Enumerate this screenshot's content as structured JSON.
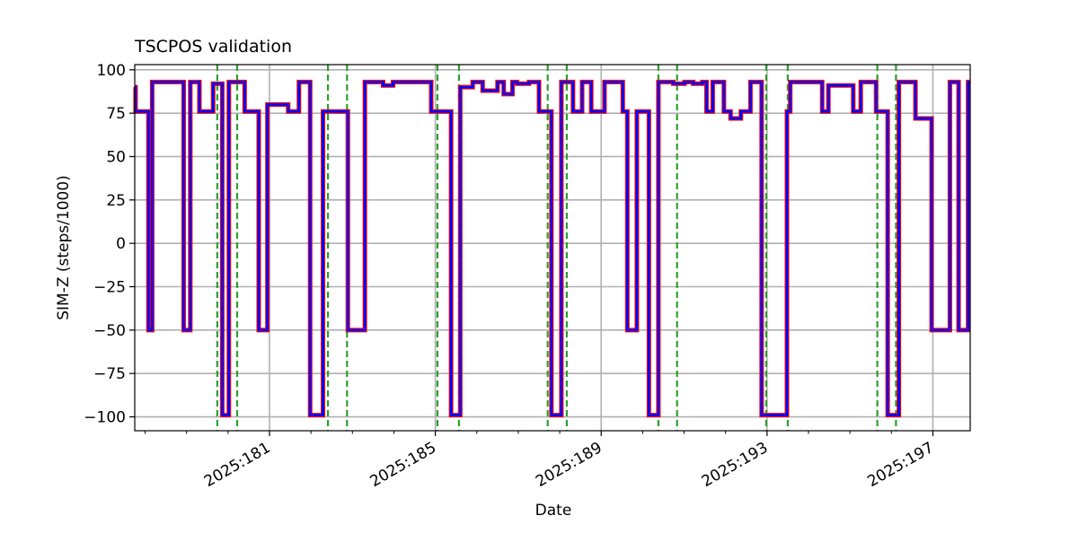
{
  "chart_data": {
    "type": "line",
    "title": "TSCPOS validation",
    "xlabel": "Date",
    "ylabel": "SIM-Z (steps/1000)",
    "xlim": [
      177.75,
      197.9
    ],
    "ylim": [
      -108,
      103
    ],
    "xticks": [
      {
        "value": 181,
        "label": "2025:181"
      },
      {
        "value": 185,
        "label": "2025:185"
      },
      {
        "value": 189,
        "label": "2025:189"
      },
      {
        "value": 193,
        "label": "2025:193"
      },
      {
        "value": 197,
        "label": "2025:197"
      }
    ],
    "xminor_ticks": [
      178,
      179,
      180,
      182,
      183,
      184,
      186,
      187,
      188,
      190,
      191,
      192,
      194,
      195,
      196
    ],
    "yticks": [
      -100,
      -75,
      -50,
      -25,
      0,
      25,
      50,
      75,
      100
    ],
    "grid": true,
    "series": [
      {
        "style": "step",
        "colors": {
          "line": "#0000ff",
          "outline": "#ff0000"
        },
        "x": [
          177.75,
          177.77,
          178.08,
          178.17,
          178.34,
          178.93,
          179.09,
          179.31,
          179.64,
          179.86,
          180.02,
          180.4,
          180.74,
          180.95,
          181.45,
          181.71,
          181.98,
          182.29,
          182.89,
          183.3,
          183.74,
          183.98,
          184.12,
          184.9,
          185.38,
          185.6,
          185.9,
          186.14,
          186.5,
          186.65,
          186.86,
          186.97,
          187.26,
          187.5,
          187.8,
          188.04,
          188.32,
          188.54,
          188.76,
          189.08,
          189.52,
          189.63,
          189.86,
          190.15,
          190.38,
          190.74,
          191.01,
          191.22,
          191.44,
          191.54,
          191.69,
          191.96,
          192.12,
          192.37,
          192.6,
          192.87,
          193.48,
          193.56,
          193.97,
          194.33,
          194.48,
          195.08,
          195.26,
          195.36,
          195.63,
          195.91,
          196.18,
          196.58,
          196.97,
          197.41,
          197.62,
          197.85,
          197.9
        ],
        "y": [
          90,
          76,
          -50,
          93,
          93,
          -50,
          93,
          76,
          92,
          -99,
          93,
          76,
          -50,
          80,
          76,
          93,
          -99,
          76,
          -50,
          93,
          91,
          93,
          93,
          76,
          -99,
          90,
          93,
          88,
          93,
          86,
          93,
          92,
          93,
          76,
          -99,
          93,
          76,
          93,
          76,
          93,
          76,
          -50,
          76,
          -99,
          93,
          92,
          93,
          92,
          93,
          76,
          93,
          76,
          72,
          76,
          93,
          -99,
          76,
          93,
          93,
          76,
          91,
          76,
          93,
          93,
          76,
          -99,
          93,
          72,
          -50,
          93,
          -50,
          93,
          93
        ]
      }
    ],
    "vlines": {
      "color": "#2ca02c",
      "style": "dashed",
      "x": [
        179.74,
        180.22,
        182.41,
        182.87,
        185.05,
        185.57,
        187.71,
        188.17,
        190.38,
        190.83,
        192.98,
        193.5,
        195.66,
        196.11
      ]
    }
  }
}
